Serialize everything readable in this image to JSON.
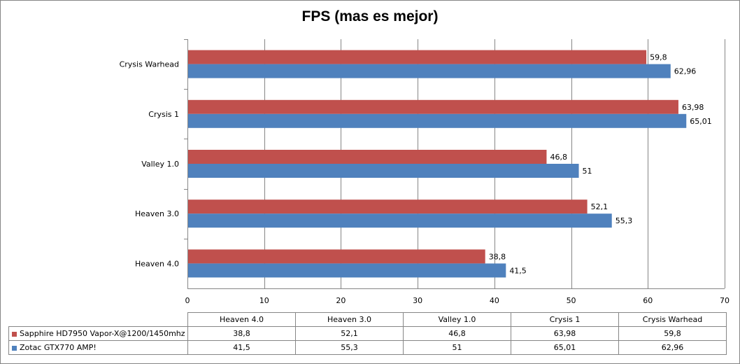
{
  "chart_data": {
    "type": "bar",
    "orientation": "horizontal",
    "title": "FPS (mas es mejor)",
    "categories": [
      "Heaven 4.0",
      "Heaven 3.0",
      "Valley 1.0",
      "Crysis 1",
      "Crysis Warhead"
    ],
    "series": [
      {
        "name": "Sapphire HD7950 Vapor-X@1200/1450mhz",
        "color": "#c0504d",
        "values": [
          38.8,
          52.1,
          46.8,
          63.98,
          59.8
        ],
        "labels": [
          "38,8",
          "52,1",
          "46,8",
          "63,98",
          "59,8"
        ]
      },
      {
        "name": "Zotac GTX770 AMP!",
        "color": "#4f81bd",
        "values": [
          41.5,
          55.3,
          51,
          65.01,
          62.96
        ],
        "labels": [
          "41,5",
          "55,3",
          "51",
          "65,01",
          "62,96"
        ]
      }
    ],
    "xlim": [
      0,
      70
    ],
    "x_ticks": [
      0,
      10,
      20,
      30,
      40,
      50,
      60,
      70
    ],
    "grid": true,
    "legend": "data-table"
  }
}
